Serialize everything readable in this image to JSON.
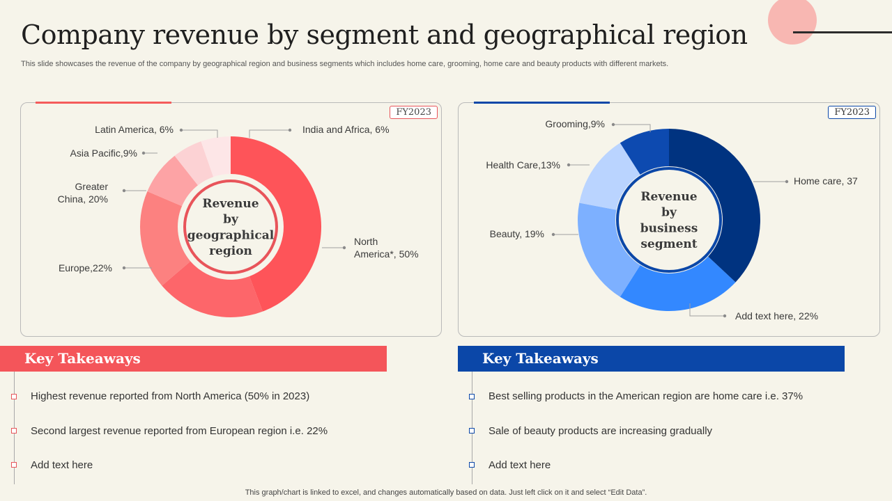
{
  "title": "Company revenue by segment and geographical region",
  "subtitle": "This slide showcases the revenue of the company by geographical region and business segments which includes home care, grooming, home care and beauty products with different markets.",
  "colors": {
    "red_accent": "#f4555a",
    "blue_accent": "#0b47a8",
    "background": "#f6f4ea"
  },
  "chart_data": [
    {
      "type": "pie",
      "badge": "FY2023",
      "center_label": [
        "Revenue",
        "by",
        "geographical",
        "region"
      ],
      "slices": [
        {
          "label": "North America*, 50%",
          "value": 50,
          "color": "#fe5459"
        },
        {
          "label": "Europe,22%",
          "value": 22,
          "color": "#fd666a"
        },
        {
          "label": "Greater China, 20%",
          "value": 20,
          "color": "#fc8180"
        },
        {
          "label": "Asia Pacific,9%",
          "value": 9,
          "color": "#fda3a5"
        },
        {
          "label": "Latin America, 6%",
          "value": 6,
          "color": "#fcd2d4"
        },
        {
          "label": "India and Africa, 6%",
          "value": 6,
          "color": "#fde6e7"
        }
      ]
    },
    {
      "type": "pie",
      "badge": "FY2023",
      "center_label": [
        "Revenue",
        "by",
        "business",
        "segment"
      ],
      "slices": [
        {
          "label": "Home care, 37",
          "value": 37,
          "color": "#003380"
        },
        {
          "label": "Add text here, 22%",
          "value": 22,
          "color": "#3388ff"
        },
        {
          "label": "Beauty, 19%",
          "value": 19,
          "color": "#7db0ff"
        },
        {
          "label": "Health Care,13%",
          "value": 13,
          "color": "#bad4ff"
        },
        {
          "label": "Grooming,9%",
          "value": 9,
          "color": "#0d4ab0"
        }
      ]
    }
  ],
  "takeaways": [
    {
      "heading": "Key Takeaways",
      "items": [
        "Highest revenue reported from North America (50% in 2023)",
        "Second largest revenue reported from European region i.e. 22%",
        "Add text here"
      ]
    },
    {
      "heading": "Key Takeaways",
      "items": [
        "Best selling products in the American region are home care i.e. 37%",
        "Sale of beauty products are increasing gradually",
        "Add text here"
      ]
    }
  ],
  "footer": "This graph/chart is linked to excel,  and changes automatically based on data. Just left click on it and select “Edit Data”."
}
